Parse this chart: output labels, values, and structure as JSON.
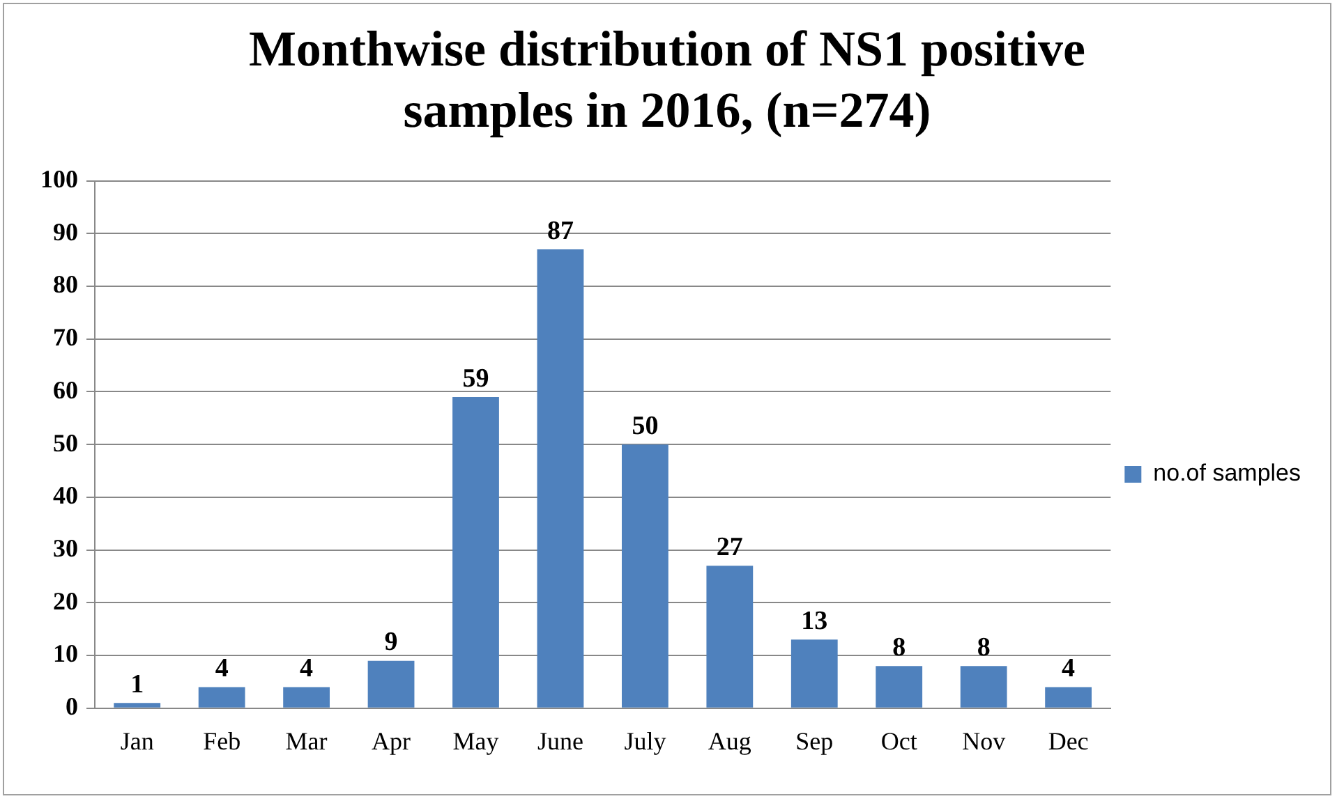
{
  "chart_data": {
    "type": "bar",
    "title": "Monthwise distribution of NS1 positive samples in 2016, (n=274)",
    "categories": [
      "Jan",
      "Feb",
      "Mar",
      "Apr",
      "May",
      "June",
      "July",
      "Aug",
      "Sep",
      "Oct",
      "Nov",
      "Dec"
    ],
    "series": [
      {
        "name": "no.of samples",
        "color": "#4f81bd",
        "values": [
          1,
          4,
          4,
          9,
          59,
          87,
          50,
          27,
          13,
          8,
          8,
          4
        ]
      }
    ],
    "ylim": [
      0,
      100
    ],
    "yticks": [
      0,
      10,
      20,
      30,
      40,
      50,
      60,
      70,
      80,
      90,
      100
    ],
    "grid": "y",
    "legend": "right",
    "data_labels": true
  }
}
